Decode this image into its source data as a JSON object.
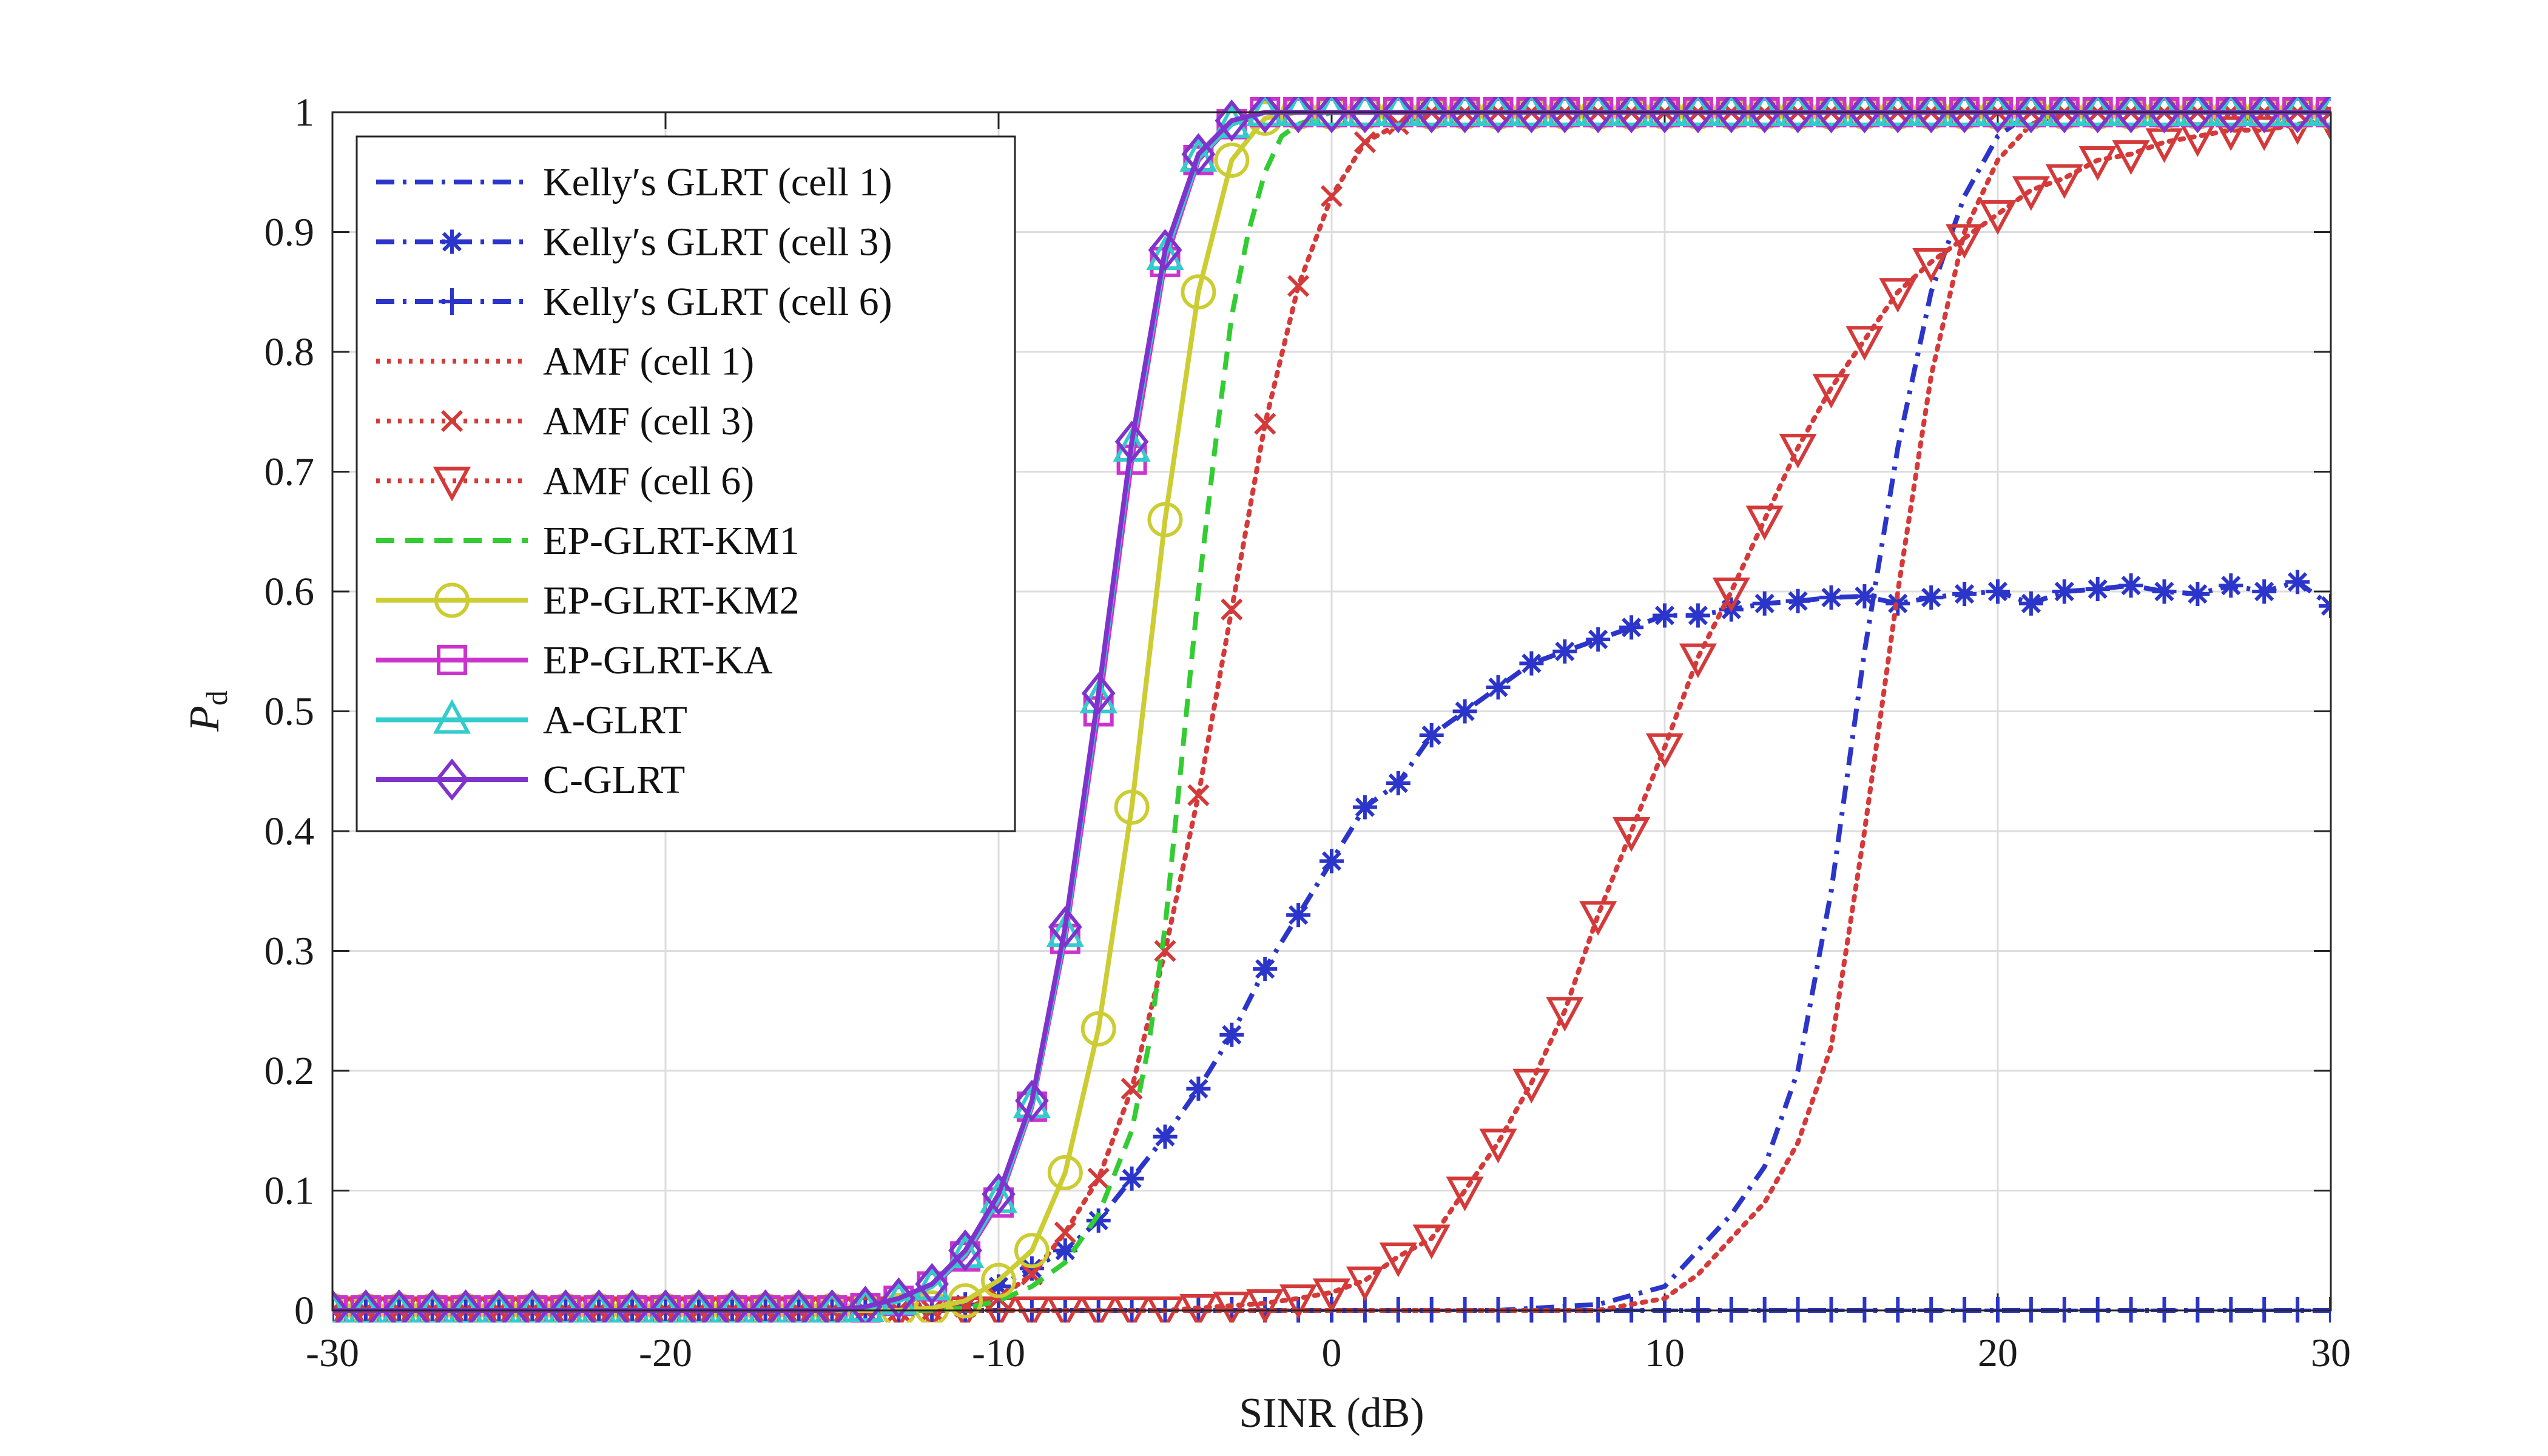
{
  "chart_data": {
    "type": "line",
    "xlabel": "SINR (dB)",
    "ylabel": "P",
    "ylabel_sub": "d",
    "xlim": [
      -30,
      30
    ],
    "ylim": [
      0,
      1
    ],
    "xticks": [
      -30,
      -20,
      -10,
      0,
      10,
      20,
      30
    ],
    "xtick_labels": [
      "-30",
      "-20",
      "-10",
      "0",
      "10",
      "20",
      "30"
    ],
    "yticks": [
      0,
      0.1,
      0.2,
      0.3,
      0.4,
      0.5,
      0.6,
      0.7,
      0.8,
      0.9,
      1
    ],
    "ytick_labels": [
      "0",
      "0.1",
      "0.2",
      "0.3",
      "0.4",
      "0.5",
      "0.6",
      "0.7",
      "0.8",
      "0.9",
      "1"
    ],
    "grid": true,
    "legend_position": "top-left",
    "series": [
      {
        "name": "Kelly's GLRT (cell 1)",
        "legend_label": "Kelly′s GLRT (cell 1)",
        "color": "#2b35c9",
        "dash": "dashdot",
        "marker": "none",
        "x": [
          -30,
          -20,
          -15,
          -10,
          -5,
          0,
          5,
          8,
          10,
          11,
          12,
          13,
          14,
          15,
          16,
          17,
          18,
          19,
          20,
          21,
          25,
          30
        ],
        "y": [
          0,
          0,
          0,
          0,
          0,
          0,
          0,
          0.005,
          0.02,
          0.05,
          0.08,
          0.12,
          0.2,
          0.35,
          0.55,
          0.72,
          0.85,
          0.93,
          0.98,
          1,
          1,
          1
        ]
      },
      {
        "name": "Kelly's GLRT (cell 3)",
        "legend_label": "Kelly′s GLRT (cell 3)",
        "color": "#2b35c9",
        "dash": "dashdot",
        "marker": "star",
        "x": [
          -30,
          -29,
          -28,
          -27,
          -26,
          -25,
          -24,
          -23,
          -22,
          -21,
          -20,
          -19,
          -18,
          -17,
          -16,
          -15,
          -14,
          -13,
          -12,
          -11,
          -10,
          -9,
          -8,
          -7,
          -6,
          -5,
          -4,
          -3,
          -2,
          -1,
          0,
          1,
          2,
          3,
          4,
          5,
          6,
          7,
          8,
          9,
          10,
          11,
          12,
          13,
          14,
          15,
          16,
          17,
          18,
          19,
          20,
          21,
          22,
          23,
          24,
          25,
          26,
          27,
          28,
          29,
          30
        ],
        "y": [
          0,
          0,
          0,
          0,
          0,
          0,
          0,
          0,
          0,
          0,
          0,
          0,
          0,
          0,
          0,
          0,
          0,
          0,
          0,
          0.005,
          0.02,
          0.035,
          0.05,
          0.075,
          0.11,
          0.145,
          0.185,
          0.23,
          0.285,
          0.33,
          0.375,
          0.42,
          0.44,
          0.48,
          0.5,
          0.52,
          0.54,
          0.55,
          0.56,
          0.57,
          0.58,
          0.58,
          0.585,
          0.59,
          0.592,
          0.595,
          0.596,
          0.59,
          0.595,
          0.598,
          0.6,
          0.59,
          0.6,
          0.602,
          0.605,
          0.6,
          0.598,
          0.605,
          0.6,
          0.608,
          0.588
        ]
      },
      {
        "name": "Kelly's GLRT (cell 6)",
        "legend_label": "Kelly′s GLRT (cell 6)",
        "color": "#2b35c9",
        "dash": "dashdot",
        "marker": "plus",
        "x": [
          -30,
          -29,
          -28,
          -27,
          -26,
          -25,
          -24,
          -23,
          -22,
          -21,
          -20,
          -19,
          -18,
          -17,
          -16,
          -15,
          -14,
          -13,
          -12,
          -11,
          -10,
          -9,
          -8,
          -7,
          -6,
          -5,
          -4,
          -3,
          -2,
          -1,
          0,
          1,
          2,
          3,
          4,
          5,
          6,
          7,
          8,
          9,
          10,
          11,
          12,
          13,
          14,
          15,
          16,
          17,
          18,
          19,
          20,
          21,
          22,
          23,
          24,
          25,
          26,
          27,
          28,
          29,
          30
        ],
        "y": [
          0,
          0,
          0,
          0,
          0,
          0,
          0,
          0,
          0,
          0,
          0,
          0,
          0,
          0,
          0,
          0,
          0,
          0,
          0,
          0,
          0,
          0,
          0,
          0,
          0,
          0,
          0,
          0,
          0,
          0,
          0,
          0,
          0,
          0,
          0,
          0,
          0,
          0,
          0,
          0,
          0,
          0,
          0,
          0,
          0,
          0,
          0,
          0,
          0,
          0,
          0,
          0,
          0,
          0,
          0,
          0,
          0,
          0,
          0,
          0,
          0
        ]
      },
      {
        "name": "AMF (cell 1)",
        "legend_label": "AMF (cell 1)",
        "color": "#d43a3a",
        "dash": "dotted",
        "marker": "none",
        "x": [
          -30,
          -20,
          -10,
          0,
          5,
          8,
          9,
          10,
          11,
          12,
          13,
          14,
          15,
          16,
          17,
          18,
          19,
          20,
          21,
          22,
          30
        ],
        "y": [
          0,
          0,
          0,
          0,
          0,
          0,
          0.005,
          0.01,
          0.03,
          0.06,
          0.09,
          0.14,
          0.22,
          0.4,
          0.6,
          0.78,
          0.9,
          0.96,
          0.99,
          1,
          1
        ]
      },
      {
        "name": "AMF (cell 3)",
        "legend_label": "AMF (cell 3)",
        "color": "#d43a3a",
        "dash": "dotted",
        "marker": "x",
        "x": [
          -30,
          -29,
          -28,
          -27,
          -26,
          -25,
          -24,
          -23,
          -22,
          -21,
          -20,
          -19,
          -18,
          -17,
          -16,
          -15,
          -14,
          -13,
          -12,
          -11,
          -10,
          -9,
          -8,
          -7,
          -6,
          -5,
          -4,
          -3,
          -2,
          -1,
          0,
          1,
          2,
          3,
          4,
          5,
          6,
          7,
          8,
          9,
          10,
          11,
          12,
          13,
          14,
          15,
          16,
          17,
          18,
          19,
          20,
          21,
          22,
          23,
          24,
          25,
          26,
          27,
          28,
          29,
          30
        ],
        "y": [
          0,
          0,
          0,
          0,
          0,
          0,
          0,
          0,
          0,
          0,
          0,
          0,
          0,
          0,
          0,
          0,
          0,
          0,
          0,
          0.003,
          0.01,
          0.03,
          0.065,
          0.11,
          0.185,
          0.3,
          0.43,
          0.585,
          0.74,
          0.855,
          0.93,
          0.975,
          0.99,
          1,
          1,
          1,
          1,
          1,
          1,
          1,
          1,
          1,
          1,
          1,
          1,
          1,
          1,
          1,
          1,
          1,
          1,
          1,
          1,
          1,
          1,
          1,
          1,
          1,
          1,
          1,
          1
        ]
      },
      {
        "name": "AMF (cell 6)",
        "legend_label": "AMF (cell 6)",
        "color": "#d43a3a",
        "dash": "dotted",
        "marker": "triangle-down",
        "x": [
          -30,
          -29,
          -28,
          -27,
          -26,
          -25,
          -24,
          -23,
          -22,
          -21,
          -20,
          -19,
          -18,
          -17,
          -16,
          -15,
          -14,
          -13,
          -12,
          -11,
          -10,
          -9,
          -8,
          -7,
          -6,
          -5,
          -4,
          -3,
          -2,
          -1,
          0,
          1,
          2,
          3,
          4,
          5,
          6,
          7,
          8,
          9,
          10,
          11,
          12,
          13,
          14,
          15,
          16,
          17,
          18,
          19,
          20,
          21,
          22,
          23,
          24,
          25,
          26,
          27,
          28,
          29,
          30
        ],
        "y": [
          0,
          0,
          0,
          0,
          0,
          0,
          0,
          0,
          0,
          0,
          0,
          0,
          0,
          0,
          0,
          0,
          0,
          0,
          0,
          0,
          0,
          0,
          0,
          0,
          0,
          0,
          0.002,
          0.004,
          0.006,
          0.01,
          0.015,
          0.025,
          0.045,
          0.06,
          0.1,
          0.14,
          0.19,
          0.25,
          0.33,
          0.4,
          0.47,
          0.545,
          0.6,
          0.66,
          0.72,
          0.77,
          0.81,
          0.85,
          0.875,
          0.895,
          0.915,
          0.935,
          0.945,
          0.96,
          0.965,
          0.975,
          0.98,
          0.985,
          0.985,
          0.99,
          0.993
        ]
      },
      {
        "name": "EP-GLRT-KM1",
        "legend_label": "EP-GLRT-KM1",
        "color": "#33cc33",
        "dash": "dashed",
        "marker": "none",
        "x": [
          -30,
          -15,
          -12,
          -11,
          -10,
          -9,
          -8,
          -7,
          -6,
          -5.5,
          -5,
          -4.5,
          -4,
          -3.5,
          -3,
          -2.5,
          -2,
          -1.5,
          -1,
          0,
          5,
          10,
          20,
          30
        ],
        "y": [
          0,
          0,
          0,
          0.002,
          0.008,
          0.02,
          0.04,
          0.08,
          0.15,
          0.22,
          0.32,
          0.46,
          0.6,
          0.72,
          0.83,
          0.9,
          0.95,
          0.98,
          0.99,
          1,
          1,
          1,
          1,
          1
        ]
      },
      {
        "name": "EP-GLRT-KM2",
        "legend_label": "EP-GLRT-KM2",
        "color": "#cccc33",
        "dash": "solid",
        "marker": "circle",
        "x": [
          -30,
          -29,
          -28,
          -27,
          -26,
          -25,
          -24,
          -23,
          -22,
          -21,
          -20,
          -19,
          -18,
          -17,
          -16,
          -15,
          -14,
          -13,
          -12,
          -11,
          -10,
          -9,
          -8,
          -7,
          -6,
          -5,
          -4,
          -3,
          -2,
          -1,
          0,
          1,
          2,
          3,
          4,
          5,
          6,
          7,
          8,
          9,
          10,
          11,
          12,
          13,
          14,
          15,
          16,
          17,
          18,
          19,
          20,
          21,
          22,
          23,
          24,
          25,
          26,
          27,
          28,
          29,
          30
        ],
        "y": [
          0,
          0,
          0,
          0,
          0,
          0,
          0,
          0,
          0,
          0,
          0,
          0,
          0,
          0,
          0,
          0,
          0,
          0,
          0.002,
          0.008,
          0.025,
          0.05,
          0.115,
          0.235,
          0.42,
          0.66,
          0.85,
          0.96,
          0.995,
          1,
          1,
          1,
          1,
          1,
          1,
          1,
          1,
          1,
          1,
          1,
          1,
          1,
          1,
          1,
          1,
          1,
          1,
          1,
          1,
          1,
          1,
          1,
          1,
          1,
          1,
          1,
          1,
          1,
          1,
          1,
          1
        ]
      },
      {
        "name": "EP-GLRT-KA",
        "legend_label": "EP-GLRT-KA",
        "color": "#cc33cc",
        "dash": "solid",
        "marker": "square",
        "x": [
          -30,
          -29,
          -28,
          -27,
          -26,
          -25,
          -24,
          -23,
          -22,
          -21,
          -20,
          -19,
          -18,
          -17,
          -16,
          -15,
          -14,
          -13,
          -12,
          -11,
          -10,
          -9,
          -8,
          -7,
          -6,
          -5,
          -4,
          -3,
          -2,
          -1,
          0,
          1,
          2,
          3,
          4,
          5,
          6,
          7,
          8,
          9,
          10,
          11,
          12,
          13,
          14,
          15,
          16,
          17,
          18,
          19,
          20,
          21,
          22,
          23,
          24,
          25,
          26,
          27,
          28,
          29,
          30
        ],
        "y": [
          0,
          0,
          0,
          0,
          0,
          0,
          0,
          0,
          0,
          0,
          0,
          0,
          0,
          0,
          0,
          0,
          0.002,
          0.008,
          0.02,
          0.045,
          0.09,
          0.17,
          0.31,
          0.5,
          0.71,
          0.875,
          0.96,
          0.99,
          1,
          1,
          1,
          1,
          1,
          1,
          1,
          1,
          1,
          1,
          1,
          1,
          1,
          1,
          1,
          1,
          1,
          1,
          1,
          1,
          1,
          1,
          1,
          1,
          1,
          1,
          1,
          1,
          1,
          1,
          1,
          1,
          1
        ]
      },
      {
        "name": "A-GLRT",
        "legend_label": "A-GLRT",
        "color": "#33cccc",
        "dash": "solid",
        "marker": "triangle-up",
        "x": [
          -30,
          -29,
          -28,
          -27,
          -26,
          -25,
          -24,
          -23,
          -22,
          -21,
          -20,
          -19,
          -18,
          -17,
          -16,
          -15,
          -14,
          -13,
          -12,
          -11,
          -10,
          -9,
          -8,
          -7,
          -6,
          -5,
          -4,
          -3,
          -2,
          -1,
          0,
          1,
          2,
          3,
          4,
          5,
          6,
          7,
          8,
          9,
          10,
          11,
          12,
          13,
          14,
          15,
          16,
          17,
          18,
          19,
          20,
          21,
          22,
          23,
          24,
          25,
          26,
          27,
          28,
          29,
          30
        ],
        "y": [
          0,
          0,
          0,
          0,
          0,
          0,
          0,
          0,
          0,
          0,
          0,
          0,
          0,
          0,
          0,
          0,
          0.002,
          0.008,
          0.02,
          0.047,
          0.093,
          0.172,
          0.315,
          0.51,
          0.72,
          0.88,
          0.962,
          0.99,
          1,
          1,
          1,
          1,
          1,
          1,
          1,
          1,
          1,
          1,
          1,
          1,
          1,
          1,
          1,
          1,
          1,
          1,
          1,
          1,
          1,
          1,
          1,
          1,
          1,
          1,
          1,
          1,
          1,
          1,
          1,
          1,
          1
        ]
      },
      {
        "name": "C-GLRT",
        "legend_label": "C-GLRT",
        "color": "#8033cc",
        "dash": "solid",
        "marker": "diamond",
        "x": [
          -30,
          -29,
          -28,
          -27,
          -26,
          -25,
          -24,
          -23,
          -22,
          -21,
          -20,
          -19,
          -18,
          -17,
          -16,
          -15,
          -14,
          -13,
          -12,
          -11,
          -10,
          -9,
          -8,
          -7,
          -6,
          -5,
          -4,
          -3,
          -2,
          -1,
          0,
          1,
          2,
          3,
          4,
          5,
          6,
          7,
          8,
          9,
          10,
          11,
          12,
          13,
          14,
          15,
          16,
          17,
          18,
          19,
          20,
          21,
          22,
          23,
          24,
          25,
          26,
          27,
          28,
          29,
          30
        ],
        "y": [
          0,
          0,
          0,
          0,
          0,
          0,
          0,
          0,
          0,
          0,
          0,
          0,
          0,
          0,
          0,
          0,
          0.003,
          0.01,
          0.022,
          0.05,
          0.097,
          0.175,
          0.32,
          0.515,
          0.725,
          0.885,
          0.965,
          0.993,
          1,
          1,
          1,
          1,
          1,
          1,
          1,
          1,
          1,
          1,
          1,
          1,
          1,
          1,
          1,
          1,
          1,
          1,
          1,
          1,
          1,
          1,
          1,
          1,
          1,
          1,
          1,
          1,
          1,
          1,
          1,
          1,
          1
        ]
      }
    ]
  }
}
